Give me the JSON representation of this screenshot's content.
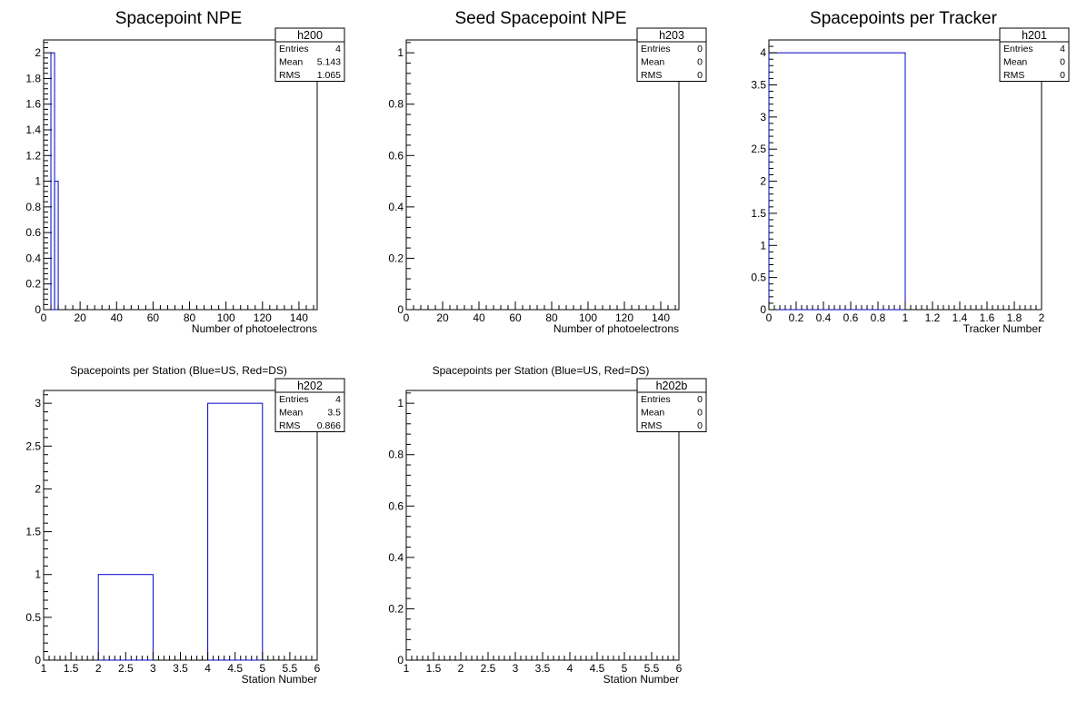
{
  "chart_data": [
    {
      "type": "bar",
      "title": "Spacepoint NPE",
      "xlabel": "Number of photoelectrons",
      "ylabel": "",
      "xlim": [
        0,
        150
      ],
      "ylim": [
        0,
        2.1
      ],
      "x_ticks": [
        0,
        20,
        40,
        60,
        80,
        100,
        120,
        140
      ],
      "y_ticks": [
        0,
        0.2,
        0.4,
        0.6,
        0.8,
        1,
        1.2,
        1.4,
        1.6,
        1.8,
        2
      ],
      "bins": [
        {
          "x0": 4,
          "x1": 6,
          "value": 2
        },
        {
          "x0": 6,
          "x1": 8,
          "value": 1
        }
      ],
      "stats": {
        "name": "h200",
        "rows": [
          {
            "label": "Entries",
            "value": "4"
          },
          {
            "label": "Mean",
            "value": "5.143"
          },
          {
            "label": "RMS",
            "value": "1.065"
          }
        ]
      },
      "line_color": "#0000cc"
    },
    {
      "type": "bar",
      "title": "Seed Spacepoint NPE",
      "xlabel": "Number of photoelectrons",
      "ylabel": "",
      "xlim": [
        0,
        150
      ],
      "ylim": [
        0,
        1.05
      ],
      "x_ticks": [
        0,
        20,
        40,
        60,
        80,
        100,
        120,
        140
      ],
      "y_ticks": [
        0,
        0.2,
        0.4,
        0.6,
        0.8,
        1
      ],
      "bins": [],
      "stats": {
        "name": "h203",
        "rows": [
          {
            "label": "Entries",
            "value": "0"
          },
          {
            "label": "Mean",
            "value": "0"
          },
          {
            "label": "RMS",
            "value": "0"
          }
        ]
      },
      "line_color": "#0000cc"
    },
    {
      "type": "bar",
      "title": "Spacepoints per Tracker",
      "xlabel": "Tracker Number",
      "ylabel": "",
      "xlim": [
        0,
        2
      ],
      "ylim": [
        0,
        4.2
      ],
      "x_ticks": [
        0,
        0.2,
        0.4,
        0.6,
        0.8,
        1,
        1.2,
        1.4,
        1.6,
        1.8,
        2
      ],
      "y_ticks": [
        0,
        0.5,
        1,
        1.5,
        2,
        2.5,
        3,
        3.5,
        4
      ],
      "bins": [
        {
          "x0": 0,
          "x1": 1,
          "value": 4
        }
      ],
      "stats": {
        "name": "h201",
        "rows": [
          {
            "label": "Entries",
            "value": "4"
          },
          {
            "label": "Mean",
            "value": "0"
          },
          {
            "label": "RMS",
            "value": "0"
          }
        ]
      },
      "line_color": "#0000cc"
    },
    {
      "type": "bar",
      "title": "Spacepoints per Station (Blue=US, Red=DS)",
      "xlabel": "Station Number",
      "ylabel": "",
      "xlim": [
        1,
        6
      ],
      "ylim": [
        0,
        3.15
      ],
      "x_ticks": [
        1,
        1.5,
        2,
        2.5,
        3,
        3.5,
        4,
        4.5,
        5,
        5.5,
        6
      ],
      "y_ticks": [
        0,
        0.5,
        1,
        1.5,
        2,
        2.5,
        3
      ],
      "bins": [
        {
          "x0": 2,
          "x1": 3,
          "value": 1
        },
        {
          "x0": 4,
          "x1": 5,
          "value": 3
        }
      ],
      "stats": {
        "name": "h202",
        "rows": [
          {
            "label": "Entries",
            "value": "4"
          },
          {
            "label": "Mean",
            "value": "3.5"
          },
          {
            "label": "RMS",
            "value": "0.866"
          }
        ]
      },
      "line_color": "#0000cc"
    },
    {
      "type": "bar",
      "title": "Spacepoints per Station (Blue=US, Red=DS)",
      "xlabel": "Station Number",
      "ylabel": "",
      "xlim": [
        1,
        6
      ],
      "ylim": [
        0,
        1.05
      ],
      "x_ticks": [
        1,
        1.5,
        2,
        2.5,
        3,
        3.5,
        4,
        4.5,
        5,
        5.5,
        6
      ],
      "y_ticks": [
        0,
        0.2,
        0.4,
        0.6,
        0.8,
        1
      ],
      "bins": [],
      "stats": {
        "name": "h202b",
        "rows": [
          {
            "label": "Entries",
            "value": "0"
          },
          {
            "label": "Mean",
            "value": "0"
          },
          {
            "label": "RMS",
            "value": "0"
          }
        ]
      },
      "line_color": "#0000cc"
    }
  ]
}
